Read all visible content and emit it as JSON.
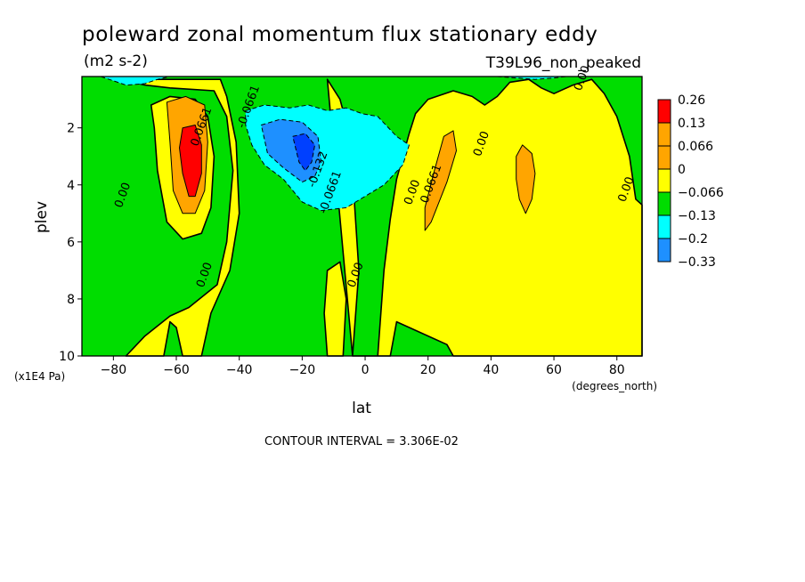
{
  "chart_data": {
    "type": "contour",
    "title": "poleward zonal momentum flux stationary eddy",
    "units": "(m2 s-2)",
    "run_label": "T39L96_non_peaked",
    "xlabel": "lat",
    "ylabel": "plev",
    "x_unit": "(degrees_north)",
    "y_unit": "(x1E4 Pa)",
    "xlim": [
      -90,
      88
    ],
    "ylim": [
      10,
      0.2
    ],
    "y_inverted": true,
    "x_ticks": [
      -80,
      -60,
      -40,
      -20,
      0,
      20,
      40,
      60,
      80
    ],
    "y_ticks": [
      2,
      4,
      6,
      8,
      10
    ],
    "contour_interval_text": "CONTOUR INTERVAL = 3.306E-02",
    "legend": {
      "position": "right",
      "levels": [
        "0.26",
        "0.13",
        "0.066",
        "0",
        "−0.066",
        "−0.13",
        "−0.2",
        "−0.33"
      ],
      "colors": [
        "#ff0000",
        "#ffa500",
        "#ffa500",
        "#ffff00",
        "#00dd00",
        "#00ffff",
        "#1e90ff",
        "#0040ff"
      ]
    },
    "colors": {
      "neg_fill": "#00dd00",
      "pos_fill": "#ffff00",
      "pos1_fill": "#ffa500",
      "pos2_fill": "#ff0000",
      "neg1_fill": "#00ffff",
      "neg2_fill": "#1e90ff",
      "neg3_fill": "#0040ff"
    },
    "regions": [
      {
        "name": "yellow-south",
        "level": "pos",
        "points": [
          [
            -78,
            0.3
          ],
          [
            -70,
            0.5
          ],
          [
            -62,
            0.6
          ],
          [
            -48,
            0.7
          ],
          [
            -44,
            1.6
          ],
          [
            -42,
            3.5
          ],
          [
            -44,
            6
          ],
          [
            -47,
            7.5
          ],
          [
            -56,
            8.3
          ],
          [
            -62,
            8.6
          ],
          [
            -70,
            9.3
          ],
          [
            -76,
            10
          ],
          [
            -64,
            10
          ],
          [
            -62,
            8.8
          ],
          [
            -60,
            9
          ],
          [
            -58,
            10
          ],
          [
            -52,
            10
          ],
          [
            -49,
            8.5
          ],
          [
            -43,
            7
          ],
          [
            -40,
            5
          ],
          [
            -41,
            2.5
          ],
          [
            -44,
            0.9
          ],
          [
            -46,
            0.3
          ]
        ]
      },
      {
        "name": "yellow-central",
        "level": "pos",
        "points": [
          [
            -12,
            0.3
          ],
          [
            -8,
            1.0
          ],
          [
            -6,
            1.8
          ],
          [
            -8,
            3.2
          ],
          [
            -4,
            3.6
          ],
          [
            -2,
            7
          ],
          [
            -4,
            10
          ],
          [
            4,
            10
          ],
          [
            6,
            7
          ],
          [
            8,
            5.2
          ],
          [
            10,
            3.8
          ],
          [
            14,
            2.2
          ],
          [
            16,
            1.5
          ],
          [
            20,
            1.0
          ],
          [
            28,
            0.7
          ],
          [
            34,
            0.9
          ],
          [
            38,
            1.2
          ],
          [
            42,
            0.9
          ],
          [
            46,
            0.4
          ],
          [
            52,
            0.3
          ],
          [
            56,
            0.6
          ],
          [
            60,
            0.8
          ],
          [
            66,
            0.5
          ],
          [
            72,
            0.3
          ],
          [
            76,
            0.8
          ],
          [
            80,
            1.6
          ],
          [
            84,
            3
          ],
          [
            86,
            4.5
          ],
          [
            88,
            4.7
          ],
          [
            88,
            10
          ],
          [
            28,
            10
          ],
          [
            26,
            9.6
          ],
          [
            14,
            9.0
          ],
          [
            10,
            8.8
          ],
          [
            8,
            10
          ],
          [
            -4,
            10
          ]
        ]
      },
      {
        "name": "yellow-left-lobe",
        "level": "pos",
        "points": [
          [
            -68,
            1.2
          ],
          [
            -62,
            0.9
          ],
          [
            -54,
            1.0
          ],
          [
            -50,
            1.6
          ],
          [
            -48,
            3
          ],
          [
            -49,
            4.8
          ],
          [
            -52,
            5.7
          ],
          [
            -58,
            5.9
          ],
          [
            -63,
            5.3
          ],
          [
            -66,
            3.5
          ],
          [
            -67,
            2
          ]
        ]
      },
      {
        "name": "yellow-midblob",
        "level": "pos",
        "points": [
          [
            -12,
            7
          ],
          [
            -8,
            6.7
          ],
          [
            -6,
            8
          ],
          [
            -7,
            10
          ],
          [
            -12,
            10
          ],
          [
            -13,
            8.5
          ]
        ]
      },
      {
        "name": "orange-south",
        "level": "pos1",
        "points": [
          [
            -63,
            1.1
          ],
          [
            -57,
            0.9
          ],
          [
            -51,
            1.2
          ],
          [
            -50,
            2.5
          ],
          [
            -51,
            4.2
          ],
          [
            -54,
            5.0
          ],
          [
            -58,
            5.0
          ],
          [
            -61,
            4.2
          ],
          [
            -62,
            2.5
          ]
        ]
      },
      {
        "name": "red-south",
        "level": "pos2",
        "points": [
          [
            -58,
            2.0
          ],
          [
            -54,
            1.9
          ],
          [
            -52,
            2.6
          ],
          [
            -52,
            3.6
          ],
          [
            -54,
            4.4
          ],
          [
            -56,
            4.4
          ],
          [
            -58,
            3.6
          ],
          [
            -59,
            2.7
          ]
        ]
      },
      {
        "name": "orange-20N",
        "level": "pos1",
        "points": [
          [
            22,
            3.5
          ],
          [
            25,
            2.3
          ],
          [
            28,
            2.1
          ],
          [
            29,
            2.8
          ],
          [
            26,
            3.9
          ],
          [
            21,
            5.3
          ],
          [
            19,
            5.6
          ],
          [
            19,
            4.8
          ]
        ]
      },
      {
        "name": "orange-50N",
        "level": "pos1",
        "points": [
          [
            48,
            3.0
          ],
          [
            50,
            2.6
          ],
          [
            53,
            2.9
          ],
          [
            54,
            3.6
          ],
          [
            53,
            4.5
          ],
          [
            51,
            5.0
          ],
          [
            49,
            4.5
          ],
          [
            48,
            3.8
          ]
        ]
      },
      {
        "name": "cyan-central",
        "level": "neg1",
        "points": [
          [
            -38,
            1.4
          ],
          [
            -32,
            1.2
          ],
          [
            -24,
            1.3
          ],
          [
            -18,
            1.2
          ],
          [
            -12,
            1.4
          ],
          [
            -6,
            1.3
          ],
          [
            -1,
            1.5
          ],
          [
            4,
            1.6
          ],
          [
            10,
            2.3
          ],
          [
            14,
            2.6
          ],
          [
            12,
            3.3
          ],
          [
            6,
            4.0
          ],
          [
            0,
            4.4
          ],
          [
            -6,
            4.8
          ],
          [
            -14,
            4.9
          ],
          [
            -20,
            4.6
          ],
          [
            -26,
            3.8
          ],
          [
            -32,
            3.3
          ],
          [
            -36,
            2.6
          ],
          [
            -38,
            1.9
          ]
        ]
      },
      {
        "name": "blue-central",
        "level": "neg2",
        "points": [
          [
            -33,
            1.9
          ],
          [
            -27,
            1.7
          ],
          [
            -20,
            1.8
          ],
          [
            -15,
            2.3
          ],
          [
            -14,
            3.2
          ],
          [
            -16,
            3.7
          ],
          [
            -20,
            3.9
          ],
          [
            -26,
            3.4
          ],
          [
            -31,
            2.9
          ]
        ]
      },
      {
        "name": "deepblue-central",
        "level": "neg3",
        "points": [
          [
            -23,
            2.3
          ],
          [
            -19,
            2.2
          ],
          [
            -16,
            2.6
          ],
          [
            -17,
            3.2
          ],
          [
            -19,
            3.5
          ],
          [
            -21,
            3.2
          ]
        ]
      },
      {
        "name": "cyan-top",
        "level": "neg1",
        "points": [
          [
            -84,
            0.2
          ],
          [
            -80,
            0.35
          ],
          [
            -76,
            0.5
          ],
          [
            -70,
            0.45
          ],
          [
            -66,
            0.3
          ],
          [
            -62,
            0.2
          ]
        ]
      },
      {
        "name": "cyan-topright",
        "level": "neg1",
        "points": [
          [
            42,
            0.2
          ],
          [
            48,
            0.25
          ],
          [
            54,
            0.3
          ],
          [
            60,
            0.25
          ],
          [
            64,
            0.2
          ]
        ]
      }
    ],
    "contour_labels": [
      {
        "text": "-0.0661",
        "lat": -36,
        "plev": 1.3
      },
      {
        "text": "-0.132",
        "lat": -14,
        "plev": 3.5
      },
      {
        "text": "-0.0661",
        "lat": -10,
        "plev": 4.3
      },
      {
        "text": "0.0661",
        "lat": -51,
        "plev": 2.0
      },
      {
        "text": "0.00",
        "lat": -76,
        "plev": 4.4
      },
      {
        "text": "0.00",
        "lat": -50,
        "plev": 7.2
      },
      {
        "text": "0.00",
        "lat": -2,
        "plev": 7.2
      },
      {
        "text": "0.00",
        "lat": 16,
        "plev": 4.3
      },
      {
        "text": "0.0661",
        "lat": 22,
        "plev": 4.0
      },
      {
        "text": "0.00",
        "lat": 38,
        "plev": 2.6
      },
      {
        "text": "0.00",
        "lat": 84,
        "plev": 4.2
      },
      {
        "text": "0.00",
        "lat": 70,
        "plev": 0.3
      }
    ]
  }
}
